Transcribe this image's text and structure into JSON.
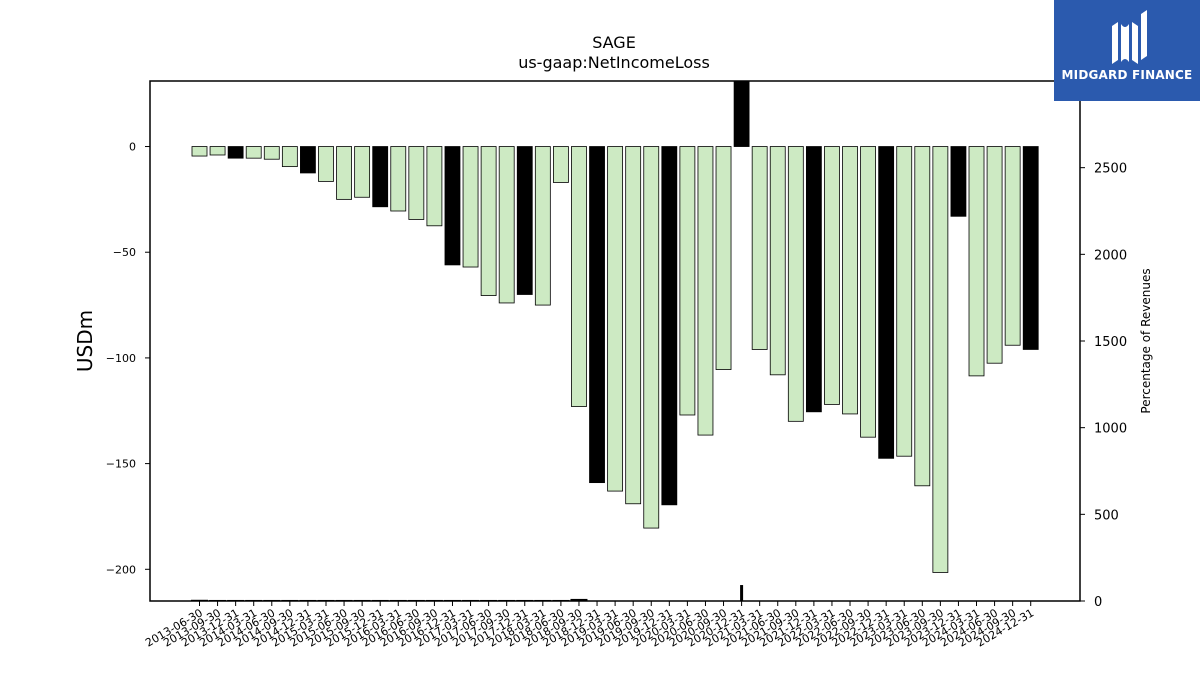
{
  "chart_data": {
    "type": "bar",
    "title": "SAGE",
    "subtitle": "us-gaap:NetIncomeLoss",
    "ylabel": "USDm",
    "ylabel_right": "Percentage of Revenues",
    "ylim": [
      -215,
      31
    ],
    "ylim_right": [
      0,
      3000
    ],
    "yticks": [
      0,
      -50,
      -100,
      -150,
      -200
    ],
    "yticks_right": [
      0,
      500,
      1000,
      1500,
      2000,
      2500
    ],
    "categories": [
      "2013-06-30",
      "2013-09-30",
      "2013-12-31",
      "2014-03-31",
      "2014-06-30",
      "2014-09-30",
      "2014-12-31",
      "2015-03-31",
      "2015-06-30",
      "2015-09-30",
      "2015-12-31",
      "2016-03-31",
      "2016-06-30",
      "2016-09-30",
      "2016-12-31",
      "2017-03-31",
      "2017-06-30",
      "2017-09-30",
      "2017-12-31",
      "2018-03-31",
      "2018-06-30",
      "2018-09-30",
      "2018-12-31",
      "2019-03-31",
      "2019-06-30",
      "2019-09-30",
      "2019-12-31",
      "2020-03-31",
      "2020-06-30",
      "2020-09-30",
      "2020-12-31",
      "2021-03-31",
      "2021-06-30",
      "2021-09-30",
      "2021-12-31",
      "2022-03-31",
      "2022-06-30",
      "2022-09-30",
      "2022-12-31",
      "2023-03-31",
      "2023-06-30",
      "2023-09-30",
      "2023-12-31",
      "2024-03-31",
      "2024-06-30",
      "2024-09-30",
      "2024-12-31"
    ],
    "series": [
      {
        "values": [
          -4.5,
          -4,
          -5.5,
          -5.5,
          -6,
          -9.5,
          -12.5,
          -16.5,
          -25,
          -24,
          -28.5,
          -30.5,
          -34.5,
          -37.5,
          -56,
          -57,
          -70.5,
          -74,
          -70,
          -75,
          -17,
          -123,
          -159,
          -163,
          -169,
          -180.5,
          -169.5,
          -127,
          -136.5,
          -105.5,
          31,
          -96,
          -108,
          -130,
          -125.5,
          -122,
          -126.5,
          -137.5,
          -147.5,
          -146.5,
          -160.5,
          -201.5,
          -33,
          -108.5,
          -102.5,
          -94,
          -96
        ],
        "annual": [
          false,
          false,
          true,
          false,
          false,
          false,
          true,
          false,
          false,
          false,
          true,
          false,
          false,
          false,
          true,
          false,
          false,
          false,
          true,
          false,
          false,
          false,
          true,
          false,
          false,
          false,
          true,
          false,
          false,
          false,
          true,
          false,
          false,
          false,
          true,
          false,
          false,
          false,
          true,
          false,
          false,
          false,
          true,
          false,
          false,
          false,
          true
        ]
      }
    ],
    "pct_of_revenue": [
      7,
      6,
      6,
      6,
      6,
      6,
      6,
      6,
      6,
      6,
      6,
      6,
      6,
      6,
      6,
      6,
      6,
      6,
      6,
      6,
      6,
      12,
      0,
      0,
      0,
      0,
      0,
      0,
      0,
      0,
      92,
      0,
      0,
      0,
      0,
      0,
      0,
      0,
      0,
      0,
      0,
      0,
      0,
      0,
      0,
      0,
      0
    ],
    "colors": {
      "quarter": "#cdeac3",
      "annual": "#000000",
      "edge": "#000000"
    }
  },
  "logo": {
    "text": "MIDGARD FINANCE"
  }
}
